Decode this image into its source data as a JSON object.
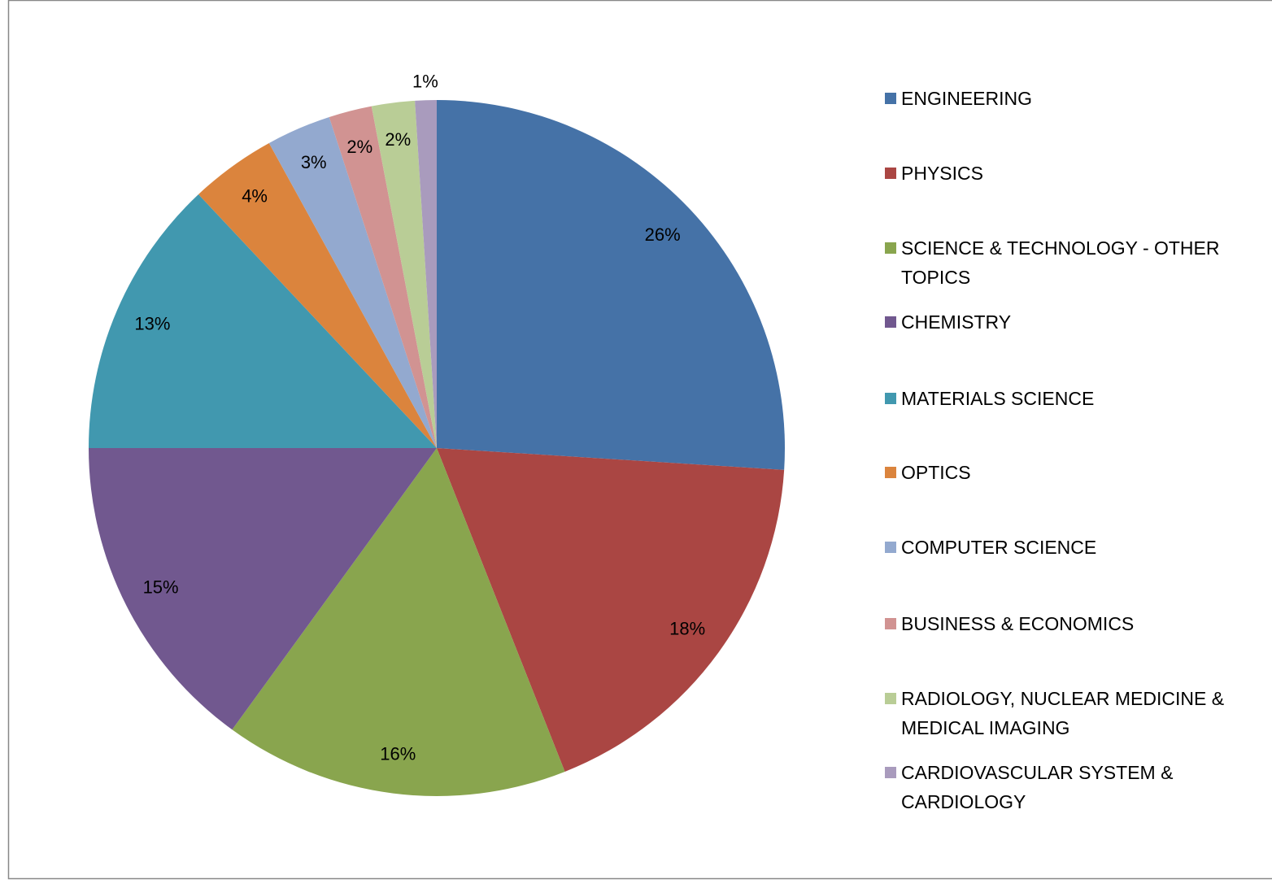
{
  "chart_data": {
    "type": "pie",
    "categories": [
      "ENGINEERING",
      "PHYSICS",
      "SCIENCE & TECHNOLOGY  - OTHER TOPICS",
      "CHEMISTRY",
      "MATERIALS SCIENCE",
      "OPTICS",
      "COMPUTER SCIENCE",
      "BUSINESS & ECONOMICS",
      "RADIOLOGY, NUCLEAR MEDICINE & MEDICAL IMAGING",
      "CARDIOVASCULAR SYSTEM & CARDIOLOGY"
    ],
    "values": [
      26,
      18,
      16,
      15,
      13,
      4,
      3,
      2,
      2,
      1
    ],
    "value_labels": [
      "26%",
      "18%",
      "16%",
      "15%",
      "13%",
      "4%",
      "3%",
      "2%",
      "2%",
      "1%"
    ],
    "colors": [
      "#4572a7",
      "#aa4643",
      "#89a54e",
      "#71588f",
      "#4198af",
      "#db843d",
      "#93a9cf",
      "#d19392",
      "#b9cd96",
      "#a99bbd"
    ],
    "legend": "right"
  }
}
